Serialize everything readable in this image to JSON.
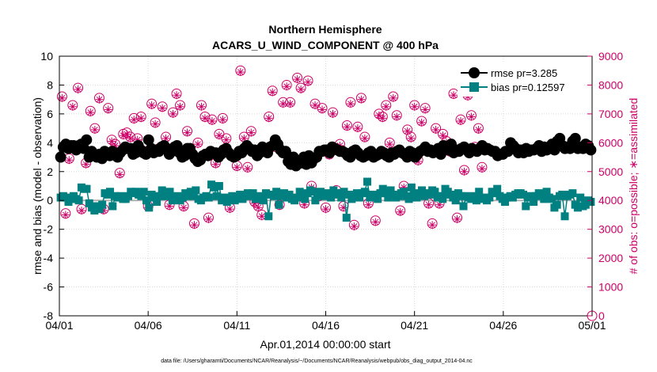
{
  "chart_data": {
    "type": "scatter",
    "title": "Northern Hemisphere",
    "subtitle": "ACARS_U_WIND_COMPONENT @ 400 hPa",
    "xlabel": "Apr.01,2014 00:00:00 start",
    "ylabel_left": "rmse and bias (model - observation)",
    "ylabel_right": "# of obs: o=possible; ∗=assimilated",
    "footer": "data file: /Users/gharamti/Documents/NCAR/Reanalysis/~/Documents/NCAR/Reanalysis/webpub/obs_diag_output_2014-04.nc",
    "x_ticks": [
      "04/01",
      "04/06",
      "04/11",
      "04/16",
      "04/21",
      "04/26",
      "05/01"
    ],
    "x_range_days": [
      0,
      30
    ],
    "ylim_left": [
      -8,
      10
    ],
    "y_ticks_left": [
      -8,
      -6,
      -4,
      -2,
      0,
      2,
      4,
      6,
      8,
      10
    ],
    "ylim_right": [
      0,
      9000
    ],
    "y_ticks_right": [
      0,
      1000,
      2000,
      3000,
      4000,
      5000,
      6000,
      7000,
      8000,
      9000
    ],
    "grid": true,
    "legend_position": "top-right",
    "colors": {
      "rmse": "#000000",
      "bias": "#008080",
      "obs": "#cc0066",
      "zero_line": "#b0b0b0"
    },
    "series": [
      {
        "name": "rmse pr=3.285",
        "marker": "circle",
        "values": [
          3.0,
          3.7,
          3.9,
          3.6,
          3.8,
          3.8,
          3.5,
          3.8,
          3.9,
          3.6,
          4.2,
          3.0,
          3.4,
          3.1,
          3.0,
          3.2,
          2.9,
          3.4,
          3.2,
          3.1,
          3.4,
          3.3,
          3.0,
          3.3,
          3.5,
          3.7,
          3.6,
          3.6,
          3.2,
          3.3,
          3.8,
          3.5,
          3.3,
          3.2,
          4.2,
          3.6,
          3.3,
          3.5,
          3.4,
          3.7,
          3.8,
          3.6,
          3.2,
          3.4,
          3.7,
          3.8,
          3.3,
          3.0,
          3.1,
          3.6,
          3.6,
          3.2,
          2.9,
          2.7,
          2.8,
          3.1,
          3.2,
          3.1,
          3.4,
          3.3,
          3.3,
          3.0,
          3.2,
          3.5,
          3.6,
          3.3,
          3.1,
          3.0,
          3.1,
          3.4,
          3.3,
          3.6,
          3.8,
          3.6,
          3.4,
          3.5,
          3.1,
          3.3,
          3.7,
          3.6,
          3.3,
          3.7,
          3.8,
          4.2,
          3.9,
          3.5,
          3.3,
          3.4,
          2.7,
          2.5,
          3.0,
          2.4,
          2.6,
          2.6,
          3.0,
          2.5,
          3.1,
          2.6,
          2.9,
          3.0,
          3.4,
          3.4,
          3.5,
          3.5,
          3.3,
          3.7,
          3.6,
          3.5,
          3.4,
          3.4,
          3.3,
          3.1,
          3.0,
          3.4,
          3.5,
          3.3,
          3.1,
          3.0,
          3.1,
          3.3,
          3.4,
          3.0,
          3.1,
          3.2,
          3.4,
          3.3,
          3.1,
          3.0,
          3.3,
          3.2,
          3.4,
          3.5,
          3.3,
          3.2,
          3.0,
          3.4,
          3.3,
          3.0,
          3.2,
          3.4,
          3.5,
          3.7,
          3.4,
          3.5,
          3.3,
          3.4,
          3.6,
          3.2,
          3.8,
          3.7,
          3.5,
          3.9,
          3.3,
          3.5,
          3.4,
          3.6,
          3.7,
          3.5,
          3.3,
          3.6,
          3.5,
          3.4,
          3.6,
          3.8,
          3.5,
          3.6,
          3.5,
          3.4,
          3.4,
          3.1,
          3.2,
          3.2,
          3.4,
          3.4,
          4.0,
          3.8,
          3.6,
          3.3,
          3.5,
          3.3,
          3.6,
          3.4,
          3.5,
          3.5,
          3.6,
          3.8,
          3.4,
          3.7,
          3.5,
          3.6,
          3.9,
          3.5,
          4.1,
          4.3,
          3.8,
          3.6,
          3.7,
          3.6,
          4.1,
          4.3,
          3.6,
          3.7,
          3.6,
          3.9,
          3.8,
          3.5
        ]
      },
      {
        "name": "bias pr=0.12597",
        "marker": "square",
        "values": [
          0.2,
          0.3,
          0.2,
          -0.1,
          0.1,
          0.3,
          0.1,
          0.0,
          0.9,
          0.8,
          0.8,
          -0.2,
          -0.5,
          -0.7,
          -0.4,
          -0.6,
          -0.3,
          0.5,
          0.4,
          0.6,
          -0.4,
          0.3,
          0.2,
          0.3,
          0.1,
          0.1,
          0.3,
          0.6,
          0.5,
          0.6,
          0.4,
          0.3,
          0.6,
          0.0,
          -0.5,
          0.4,
          0.2,
          -0.1,
          0.3,
          0.7,
          0.3,
          0.3,
          0.6,
          0.0,
          0.2,
          0.3,
          0.0,
          0.2,
          0.5,
          0.3,
          0.6,
          0.3,
          0.7,
          0.1,
          0.0,
          0.2,
          0.3,
          0.2,
          1.1,
          0.9,
          0.3,
          1.0,
          0.0,
          0.2,
          -0.1,
          0.1,
          0.3,
          0.0,
          0.2,
          0.4,
          0.1,
          0.3,
          0.5,
          0.3,
          0.5,
          0.1,
          0.2,
          0.3,
          0.0,
          0.5,
          -1.1,
          0.4,
          0.3,
          0.6,
          -0.3,
          0.3,
          0.5,
          0.2,
          0.4,
          0.1,
          0.0,
          0.2,
          0.6,
          0.3,
          0.1,
          0.5,
          0.7,
          0.6,
          0.0,
          0.4,
          0.6,
          0.3,
          0.5,
          0.4,
          0.2,
          0.7,
          0.4,
          0.5,
          0.2,
          0.6,
          -1.2,
          0.4,
          0.1,
          0.3,
          0.5,
          0.2,
          0.5,
          0.6,
          1.3,
          0.2,
          0.4,
          0.3,
          0.1,
          0.5,
          0.8,
          0.5,
          0.2,
          0.7,
          0.4,
          0.2,
          0.3,
          0.5,
          0.6,
          0.3,
          0.1,
          0.9,
          0.5,
          0.2,
          0.4,
          0.7,
          0.3,
          0.5,
          0.4,
          0.7,
          0.6,
          0.2,
          0.3,
          0.1,
          0.8,
          0.6,
          0.4,
          0.2,
          0.0,
          0.5,
          0.3,
          -0.4,
          0.3,
          0.2,
          0.1,
          0.3,
          0.0,
          0.6,
          0.2,
          0.1,
          0.0,
          0.2,
          0.6,
          0.5,
          0.8,
          0.3,
          0.1,
          -0.1,
          0.2,
          0.3,
          0.2,
          0.4,
          0.5,
          0.5,
          0.4,
          -0.4,
          0.2,
          0.3,
          -0.1,
          0.3,
          0.5,
          0.4,
          0.1,
          0.6,
          0.2,
          0.1,
          -0.5,
          -0.3,
          0.3,
          0.4,
          -1.1,
          0.3,
          0.4,
          0.5,
          -0.3,
          -0.5,
          0.2,
          -0.4,
          -0.3,
          0.0,
          -0.1
        ]
      },
      {
        "name": "possible",
        "marker": "open-circle",
        "axis": "right",
        "values": [
          7600,
          3550,
          5450,
          7300,
          7900,
          3700,
          5300,
          7100,
          6500,
          7550,
          3700,
          7200,
          6100,
          5950,
          4950,
          6300,
          6350,
          6200,
          6850,
          6150,
          6900,
          5700,
          3800,
          7350,
          6700,
          5800,
          7250,
          6200,
          3850,
          7050,
          7700,
          7300,
          3800,
          6400,
          5600,
          3200,
          6000,
          7300,
          6900,
          3400,
          6800,
          5300,
          6300,
          6850,
          6150,
          3750,
          5550,
          5200,
          8500,
          6200,
          5150,
          6400,
          3950,
          3800,
          3500,
          5700,
          6900,
          7800,
          5850,
          3850,
          7400,
          8000,
          7400,
          5500,
          8250,
          7900,
          3900,
          8150,
          4500,
          7350,
          4150,
          7200,
          3750,
          5600,
          7050,
          4350,
          5950,
          3800,
          6600,
          7400,
          3150,
          6550,
          7550,
          6200,
          3900,
          5550,
          3300,
          7000,
          6900,
          7300,
          6000,
          7600,
          6950,
          3650,
          4500,
          6450,
          6200,
          7300,
          5400,
          6750,
          7200,
          3900,
          3200,
          6500,
          3900,
          6300,
          6050,
          5700,
          7700,
          3400,
          6800,
          5050,
          7650,
          6950,
          5850,
          6500,
          5150
        ],
        "x_positions": [
          0.15,
          0.35,
          0.55,
          0.75,
          1.05,
          1.25,
          1.5,
          1.75,
          2.0,
          2.25,
          2.5,
          2.75,
          2.95,
          3.15,
          3.4,
          3.6,
          3.8,
          4.0,
          4.2,
          4.4,
          4.6,
          4.8,
          5.0,
          5.2,
          5.4,
          5.6,
          5.8,
          6.0,
          6.2,
          6.4,
          6.6,
          6.8,
          7.0,
          7.2,
          7.4,
          7.6,
          7.8,
          8.0,
          8.2,
          8.4,
          8.6,
          8.8,
          9.0,
          9.2,
          9.4,
          9.6,
          9.8,
          10.0,
          10.2,
          10.4,
          10.6,
          10.8,
          11.0,
          11.2,
          11.4,
          11.6,
          11.8,
          12.0,
          12.2,
          12.4,
          12.6,
          12.8,
          13.0,
          13.2,
          13.4,
          13.6,
          13.8,
          14.0,
          14.2,
          14.4,
          14.6,
          14.8,
          15.0,
          15.2,
          15.4,
          15.6,
          15.8,
          16.0,
          16.2,
          16.4,
          16.6,
          16.8,
          17.0,
          17.2,
          17.4,
          17.6,
          17.8,
          18.0,
          18.2,
          18.4,
          18.6,
          18.8,
          19.0,
          19.2,
          19.4,
          19.6,
          19.8,
          20.0,
          20.2,
          20.4,
          20.6,
          20.8,
          21.0,
          21.2,
          21.4,
          21.6,
          21.8,
          22.0,
          22.2,
          22.4,
          22.6,
          22.8,
          23.0,
          23.2,
          23.4,
          23.6,
          23.8
        ]
      },
      {
        "name": "assimilated",
        "marker": "asterisk",
        "axis": "right",
        "values": [
          7550,
          3500,
          5400,
          7250,
          7850,
          3650,
          5250,
          7050,
          6450,
          7500,
          3650,
          7150,
          6050,
          5900,
          4900,
          6250,
          6300,
          6150,
          6800,
          6100,
          6850,
          5650,
          3750,
          7300,
          6650,
          5750,
          7200,
          6150,
          3800,
          7000,
          7650,
          7250,
          3750,
          6350,
          5550,
          3150,
          5950,
          7250,
          6850,
          3350,
          6750,
          5250,
          6250,
          6800,
          6100,
          3700,
          5500,
          5150,
          8450,
          6150,
          5100,
          6350,
          3900,
          3750,
          3450,
          5650,
          6850,
          7750,
          5800,
          3800,
          7350,
          7950,
          7350,
          5450,
          8200,
          7850,
          3850,
          8100,
          4450,
          7300,
          4100,
          7150,
          3700,
          5550,
          7000,
          4300,
          5900,
          3750,
          6550,
          7350,
          3100,
          6500,
          7500,
          6150,
          3850,
          5500,
          3250,
          6950,
          6850,
          7250,
          5950,
          7550,
          6900,
          3600,
          4450,
          6400,
          6150,
          7250,
          5350,
          6700,
          7150,
          3850,
          3150,
          6450,
          3850,
          6250,
          6000,
          5650,
          7650,
          3350,
          6750,
          5000,
          7600,
          6900,
          5800,
          6450,
          5100
        ],
        "x_positions": [
          0.15,
          0.35,
          0.55,
          0.75,
          1.05,
          1.25,
          1.5,
          1.75,
          2.0,
          2.25,
          2.5,
          2.75,
          2.95,
          3.15,
          3.4,
          3.6,
          3.8,
          4.0,
          4.2,
          4.4,
          4.6,
          4.8,
          5.0,
          5.2,
          5.4,
          5.6,
          5.8,
          6.0,
          6.2,
          6.4,
          6.6,
          6.8,
          7.0,
          7.2,
          7.4,
          7.6,
          7.8,
          8.0,
          8.2,
          8.4,
          8.6,
          8.8,
          9.0,
          9.2,
          9.4,
          9.6,
          9.8,
          10.0,
          10.2,
          10.4,
          10.6,
          10.8,
          11.0,
          11.2,
          11.4,
          11.6,
          11.8,
          12.0,
          12.2,
          12.4,
          12.6,
          12.8,
          13.0,
          13.2,
          13.4,
          13.6,
          13.8,
          14.0,
          14.2,
          14.4,
          14.6,
          14.8,
          15.0,
          15.2,
          15.4,
          15.6,
          15.8,
          16.0,
          16.2,
          16.4,
          16.6,
          16.8,
          17.0,
          17.2,
          17.4,
          17.6,
          17.8,
          18.0,
          18.2,
          18.4,
          18.6,
          18.8,
          19.0,
          19.2,
          19.4,
          19.6,
          19.8,
          20.0,
          20.2,
          20.4,
          20.6,
          20.8,
          21.0,
          21.2,
          21.4,
          21.6,
          21.8,
          22.0,
          22.2,
          22.4,
          22.6,
          22.8,
          23.0,
          23.2,
          23.4,
          23.6,
          23.8
        ]
      }
    ]
  }
}
